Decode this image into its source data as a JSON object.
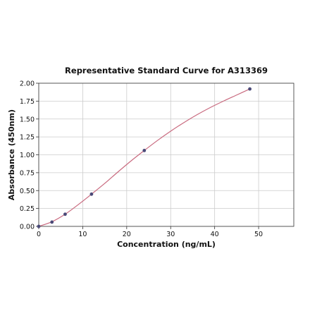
{
  "chart_data": {
    "type": "scatter",
    "title": "Representative Standard Curve for A313369",
    "xlabel": "Concentration (ng/mL)",
    "ylabel": "Absorbance (450nm)",
    "xlim": [
      0,
      58
    ],
    "ylim": [
      0,
      2.0
    ],
    "xticks": [
      0,
      10,
      20,
      30,
      40,
      50
    ],
    "xtick_labels": [
      "0",
      "10",
      "20",
      "30",
      "40",
      "50"
    ],
    "yticks": [
      0,
      0.25,
      0.5,
      0.75,
      1.0,
      1.25,
      1.5,
      1.75,
      2.0
    ],
    "ytick_labels": [
      "0.00",
      "0.25",
      "0.50",
      "0.75",
      "1.00",
      "1.25",
      "1.50",
      "1.75",
      "2.00"
    ],
    "grid": true,
    "points": {
      "x": [
        0,
        3,
        6,
        12,
        24,
        48
      ],
      "y": [
        0.0,
        0.06,
        0.17,
        0.45,
        1.06,
        1.92
      ]
    },
    "fit_curve": {
      "x": [
        0,
        3,
        6,
        9,
        12,
        15,
        18,
        21,
        24,
        27,
        30,
        33,
        36,
        39,
        42,
        45,
        48
      ],
      "y": [
        0.0,
        0.065,
        0.17,
        0.305,
        0.45,
        0.6,
        0.76,
        0.915,
        1.06,
        1.2,
        1.33,
        1.45,
        1.56,
        1.66,
        1.75,
        1.835,
        1.92
      ]
    },
    "colors": {
      "curve": "#c96a7f",
      "point": "#4a4a78",
      "grid": "#cccccc",
      "axis": "#333333"
    }
  }
}
